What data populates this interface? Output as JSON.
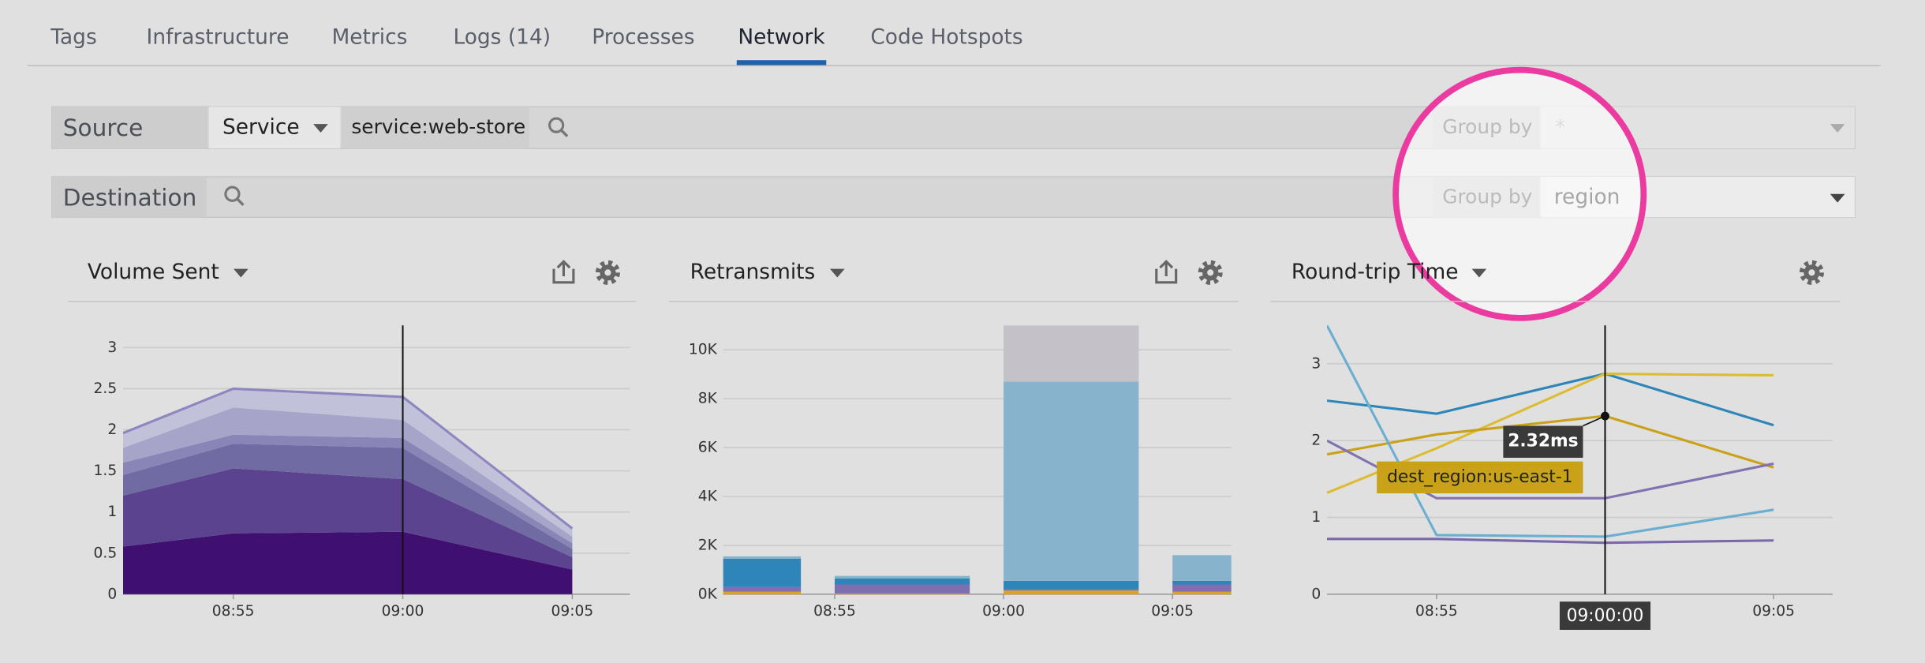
{
  "tabs": [
    "Tags",
    "Infrastructure",
    "Metrics",
    "Logs (14)",
    "Processes",
    "Network",
    "Code Hotspots"
  ],
  "active_tab": "Network",
  "source": {
    "label": "Source",
    "type": "Service",
    "query": "service:web-store",
    "group_by_label": "Group by",
    "group_by": "*"
  },
  "destination": {
    "label": "Destination",
    "group_by_label": "Group by",
    "group_by": "region"
  },
  "chart_data": [
    {
      "type": "area",
      "title": "Volume Sent",
      "x": [
        51.75,
        55,
        60,
        65
      ],
      "xlim": [
        51.75,
        66.7
      ],
      "xticks": [
        {
          "value": 55,
          "label": "08:55"
        },
        {
          "value": 60,
          "label": "09:00"
        },
        {
          "value": 65,
          "label": "09:05"
        }
      ],
      "ylim": [
        0,
        3.27
      ],
      "yticks": [
        0,
        0.5,
        1,
        1.5,
        2,
        2.5,
        3
      ],
      "grid": true,
      "outline_color": "#8d86c0",
      "cursor": {
        "value": 60
      },
      "series": [
        {
          "color": "#3f1070",
          "values": [
            0.58,
            0.74,
            0.76,
            0.3
          ]
        },
        {
          "color": "#5c438f",
          "values": [
            0.62,
            0.79,
            0.64,
            0.15
          ]
        },
        {
          "color": "#716ba3",
          "values": [
            0.25,
            0.3,
            0.38,
            0.1
          ]
        },
        {
          "color": "#8985b7",
          "values": [
            0.15,
            0.11,
            0.12,
            0.07
          ]
        },
        {
          "color": "#a6a4c8",
          "values": [
            0.18,
            0.33,
            0.22,
            0.08
          ]
        },
        {
          "color": "#c2c1da",
          "values": [
            0.18,
            0.23,
            0.28,
            0.1
          ]
        }
      ]
    },
    {
      "type": "bar",
      "title": "Retransmits",
      "x": [
        50,
        55,
        60,
        65
      ],
      "xlim": [
        51.7,
        66.74
      ],
      "xticks": [
        {
          "value": 55,
          "label": "08:55"
        },
        {
          "value": 60,
          "label": "09:00"
        },
        {
          "value": 65,
          "label": "09:05"
        }
      ],
      "ylim": [
        0,
        11000
      ],
      "yticks": [
        {
          "value": 0,
          "label": "0K"
        },
        {
          "value": 2000,
          "label": "2K"
        },
        {
          "value": 4000,
          "label": "4K"
        },
        {
          "value": 6000,
          "label": "6K"
        },
        {
          "value": 8000,
          "label": "8K"
        },
        {
          "value": 10000,
          "label": "10K"
        }
      ],
      "grid": true,
      "series": [
        {
          "color": "#e0a020",
          "values": [
            100,
            30,
            150,
            100
          ]
        },
        {
          "color": "#7f6fb0",
          "values": [
            200,
            370,
            50,
            300
          ]
        },
        {
          "color": "#2e86b8",
          "values": [
            1150,
            250,
            350,
            150
          ]
        },
        {
          "color": "#87b4cc",
          "values": [
            100,
            100,
            8150,
            1050
          ]
        },
        {
          "color": "#c4c1c8",
          "values": [
            0,
            0,
            2300,
            0
          ]
        }
      ]
    },
    {
      "type": "line",
      "title": "Round-trip Time",
      "x": [
        51.75,
        55,
        60,
        65
      ],
      "xlim": [
        51.75,
        66.75
      ],
      "xticks": [
        {
          "value": 55,
          "label": "08:55"
        },
        {
          "value": 65,
          "label": "09:05"
        }
      ],
      "ylim": [
        0,
        3.5
      ],
      "yticks": [
        0,
        1,
        2,
        3
      ],
      "grid": true,
      "cursor": {
        "value": 60,
        "label": "09:00:00"
      },
      "series": [
        {
          "color": "#2e86b8",
          "values": [
            2.52,
            2.35,
            2.87,
            2.2
          ]
        },
        {
          "color": "#dcbc30",
          "values": [
            1.32,
            1.9,
            2.87,
            2.85
          ]
        },
        {
          "name": "dest_region:us-east-1",
          "color": "#c9a21a",
          "values": [
            1.82,
            2.08,
            2.32,
            1.65
          ],
          "value_labels": [
            null,
            null,
            "2.32ms",
            null
          ]
        },
        {
          "color": "#8272b0",
          "values": [
            2.0,
            1.25,
            1.25,
            1.7
          ]
        },
        {
          "color": "#6aaed0",
          "values": [
            3.5,
            0.77,
            0.75,
            1.1
          ]
        },
        {
          "color": "#7b68a8",
          "values": [
            0.72,
            0.72,
            0.67,
            0.7
          ]
        }
      ]
    }
  ]
}
